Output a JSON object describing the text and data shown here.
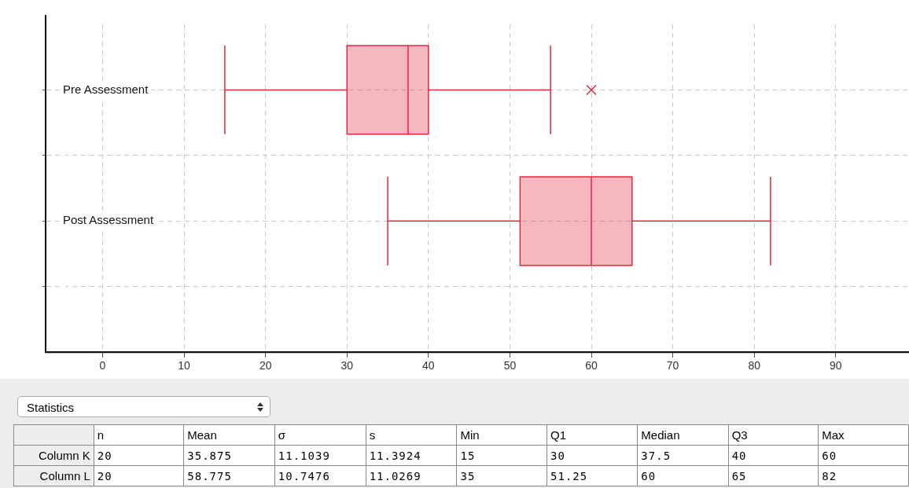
{
  "chart_data": [
    {
      "type": "box",
      "orientation": "horizontal",
      "categories": [
        "Pre Assessment",
        "Post Assessment"
      ],
      "color": "#e3263d",
      "boxes": [
        {
          "low": 15,
          "q1": 30,
          "median": 37.5,
          "q3": 40,
          "high": 55,
          "outliers": [
            60
          ]
        },
        {
          "low": 35,
          "q1": 51.25,
          "median": 60,
          "q3": 65,
          "high": 82
        }
      ],
      "xlim": [
        -7,
        99
      ],
      "xticks": [
        0,
        10,
        20,
        30,
        40,
        50,
        60,
        70,
        80,
        90
      ],
      "grid": true
    },
    {
      "type": "other",
      "title": "Statistics",
      "categories": [
        "n",
        "Mean",
        "σ",
        "s",
        "Min",
        "Q1",
        "Median",
        "Q3",
        "Max"
      ],
      "y_categories": [
        "Column K",
        "Column L"
      ],
      "cell_labels": [
        [
          "20",
          "35.875",
          "11.1039",
          "11.3924",
          "15",
          "30",
          "37.5",
          "40",
          "60"
        ],
        [
          "20",
          "58.775",
          "10.7476",
          "11.0269",
          "35",
          "51.25",
          "60",
          "65",
          "82"
        ]
      ]
    }
  ]
}
